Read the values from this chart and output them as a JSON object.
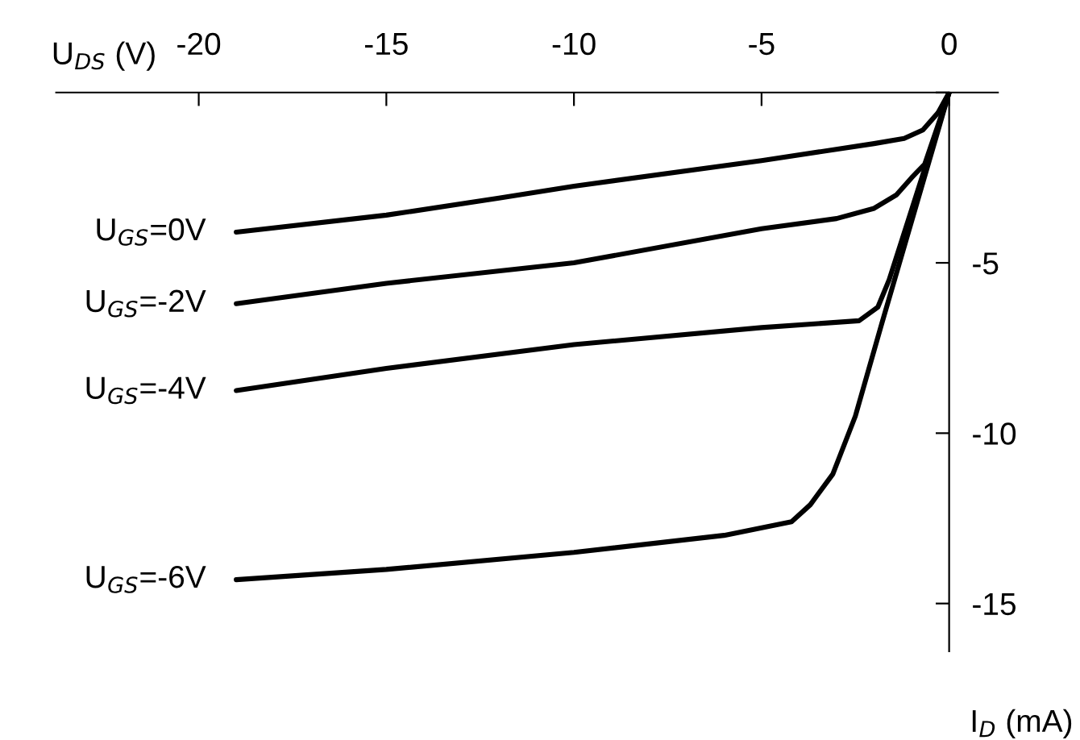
{
  "chart_data": {
    "type": "line",
    "xlabel": "U$_{DS}$ (V)",
    "ylabel": "I$_{D}$ (mA)",
    "xlim": [
      -23.8,
      1.3
    ],
    "ylim": [
      -16.4,
      0
    ],
    "xticks": [
      -20,
      -15,
      -10,
      -5,
      0
    ],
    "yticks": [
      {
        "value": 0,
        "label": null
      },
      -5,
      -10,
      -15
    ],
    "grid": false,
    "legend": false,
    "marker": "none",
    "line_style": "solid",
    "series": [
      {
        "name": "U$_{GS}$=0V",
        "color": "#000000",
        "x": [
          -19,
          -15,
          -12,
          -10,
          -5,
          -2,
          -1.2,
          -0.7,
          -0.3,
          0
        ],
        "values": [
          -4.1,
          -3.6,
          -3.1,
          -2.75,
          -2.0,
          -1.5,
          -1.35,
          -1.1,
          -0.6,
          0
        ]
      },
      {
        "name": "U$_{GS}$=-2V",
        "color": "#000000",
        "x": [
          -19,
          -15,
          -10,
          -5,
          -3,
          -2,
          -1.4,
          -1.0,
          -0.65,
          0
        ],
        "values": [
          -6.2,
          -5.6,
          -5.0,
          -4.0,
          -3.7,
          -3.4,
          -3.0,
          -2.5,
          -2.1,
          0
        ]
      },
      {
        "name": "U$_{GS}$=-4V",
        "color": "#000000",
        "x": [
          -19,
          -15,
          -10,
          -5,
          -2.4,
          -1.9,
          -1.6,
          0
        ],
        "values": [
          -8.75,
          -8.1,
          -7.4,
          -6.9,
          -6.7,
          -6.3,
          -5.5,
          0
        ]
      },
      {
        "name": "U$_{GS}$=-6V",
        "color": "#000000",
        "x": [
          -19,
          -15,
          -10,
          -6,
          -4.2,
          -3.7,
          -3.1,
          -2.5,
          -1.8,
          0
        ],
        "values": [
          -14.3,
          -14.0,
          -13.5,
          -13.0,
          -12.6,
          -12.1,
          -11.2,
          -9.5,
          -6.8,
          0
        ]
      }
    ]
  }
}
